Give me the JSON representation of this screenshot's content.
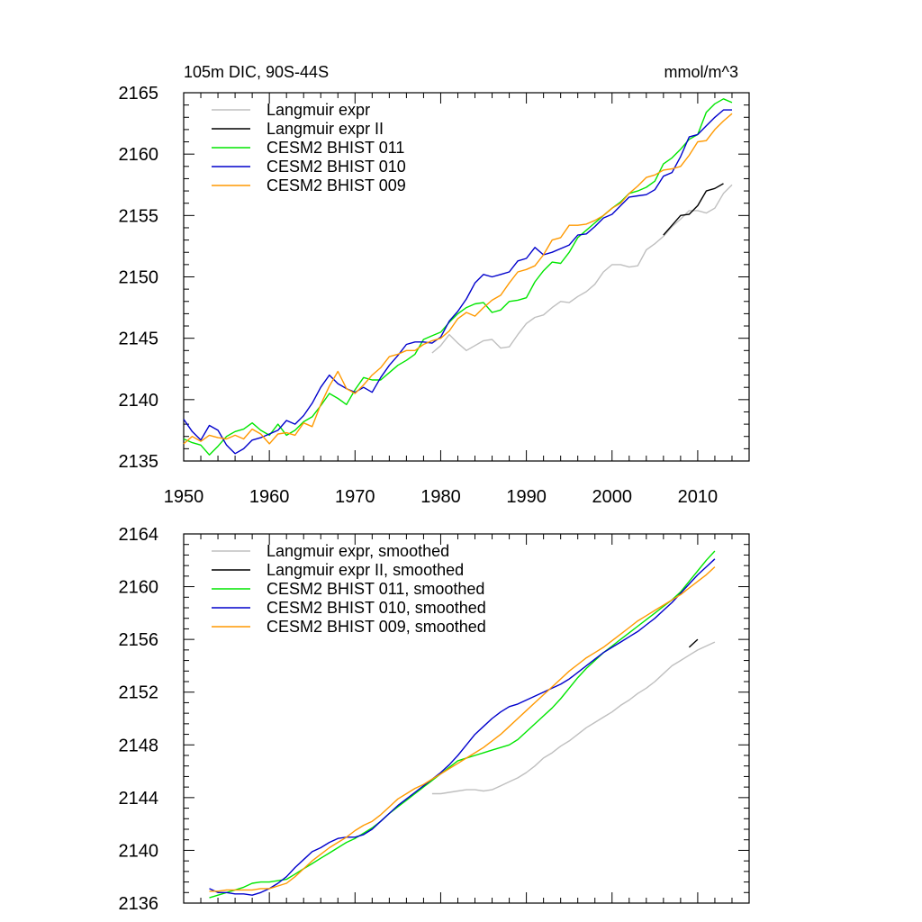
{
  "chart_data": [
    {
      "type": "line",
      "title": "105m DIC, 90S-44S",
      "units": "mmol/m^3",
      "xlim": [
        1950,
        2016
      ],
      "ylim": [
        2135,
        2165
      ],
      "xticks": [
        1950,
        1960,
        1970,
        1980,
        1990,
        2000,
        2010
      ],
      "yticks": [
        2135,
        2140,
        2145,
        2150,
        2155,
        2160,
        2165
      ],
      "legend_position": "top-left",
      "series": [
        {
          "name": "Langmuir expr",
          "color": "#bfbfbf",
          "x": [
            1979,
            1980,
            1981,
            1982,
            1983,
            1984,
            1985,
            1986,
            1987,
            1988,
            1989,
            1990,
            1991,
            1992,
            1993,
            1994,
            1995,
            1996,
            1997,
            1998,
            1999,
            2000,
            2001,
            2002,
            2003,
            2004,
            2005,
            2006,
            2007,
            2008,
            2009,
            2010,
            2011,
            2012,
            2013,
            2014
          ],
          "y": [
            2143.8,
            2144.4,
            2145.3,
            2144.6,
            2144.0,
            2144.4,
            2144.8,
            2144.9,
            2144.2,
            2144.3,
            2145.3,
            2146.2,
            2146.7,
            2146.9,
            2147.5,
            2148.0,
            2147.9,
            2148.4,
            2148.8,
            2149.4,
            2150.4,
            2151.0,
            2151.0,
            2150.8,
            2150.9,
            2152.2,
            2152.7,
            2153.3,
            2154.1,
            2154.7,
            2155.4,
            2155.4,
            2155.2,
            2155.6,
            2156.8,
            2157.5
          ]
        },
        {
          "name": "Langmuir expr II",
          "color": "#000000",
          "x": [
            2006,
            2007,
            2008,
            2009,
            2010,
            2011,
            2012,
            2013,
            2014
          ],
          "y": [
            2153.4,
            2154.2,
            2155.0,
            2155.1,
            2155.8,
            2157.0,
            2157.2,
            2157.6,
            null
          ]
        },
        {
          "name": "CESM2 BHIST 011",
          "color": "#00e600",
          "x": [
            1950,
            1951,
            1952,
            1953,
            1954,
            1955,
            1956,
            1957,
            1958,
            1959,
            1960,
            1961,
            1962,
            1963,
            1964,
            1965,
            1966,
            1967,
            1968,
            1969,
            1970,
            1971,
            1972,
            1973,
            1974,
            1975,
            1976,
            1977,
            1978,
            1979,
            1980,
            1981,
            1982,
            1983,
            1984,
            1985,
            1986,
            1987,
            1988,
            1989,
            1990,
            1991,
            1992,
            1993,
            1994,
            1995,
            1996,
            1997,
            1998,
            1999,
            2000,
            2001,
            2002,
            2003,
            2004,
            2005,
            2006,
            2007,
            2008,
            2009,
            2010,
            2011,
            2012,
            2013,
            2014
          ],
          "y": [
            2136.8,
            2136.5,
            2136.3,
            2135.5,
            2136.2,
            2137.0,
            2137.4,
            2137.6,
            2138.1,
            2137.5,
            2137.1,
            2138.0,
            2137.1,
            2137.5,
            2138.2,
            2138.6,
            2139.5,
            2140.5,
            2140.1,
            2139.6,
            2140.8,
            2141.8,
            2141.6,
            2141.6,
            2142.2,
            2142.8,
            2143.2,
            2143.7,
            2144.9,
            2145.2,
            2145.5,
            2146.3,
            2147.0,
            2147.5,
            2147.8,
            2147.9,
            2147.1,
            2147.3,
            2148.0,
            2148.1,
            2148.3,
            2149.6,
            2150.5,
            2151.2,
            2151.1,
            2152.0,
            2153.2,
            2153.8,
            2154.4,
            2155.0,
            2155.6,
            2156.1,
            2156.8,
            2157.0,
            2157.3,
            2157.8,
            2159.2,
            2159.7,
            2160.4,
            2161.2,
            2161.6,
            2163.4,
            2164.1,
            2164.5,
            2164.2
          ]
        },
        {
          "name": "CESM2 BHIST 010",
          "color": "#0000cc",
          "x": [
            1950,
            1951,
            1952,
            1953,
            1954,
            1955,
            1956,
            1957,
            1958,
            1959,
            1960,
            1961,
            1962,
            1963,
            1964,
            1965,
            1966,
            1967,
            1968,
            1969,
            1970,
            1971,
            1972,
            1973,
            1974,
            1975,
            1976,
            1977,
            1978,
            1979,
            1980,
            1981,
            1982,
            1983,
            1984,
            1985,
            1986,
            1987,
            1988,
            1989,
            1990,
            1991,
            1992,
            1993,
            1994,
            1995,
            1996,
            1997,
            1998,
            1999,
            2000,
            2001,
            2002,
            2003,
            2004,
            2005,
            2006,
            2007,
            2008,
            2009,
            2010,
            2011,
            2012,
            2013,
            2014
          ],
          "y": [
            2138.4,
            2137.4,
            2136.7,
            2137.9,
            2137.5,
            2136.3,
            2135.6,
            2136.0,
            2136.7,
            2136.9,
            2137.2,
            2137.5,
            2138.3,
            2138.0,
            2138.7,
            2139.7,
            2141.0,
            2142.0,
            2141.3,
            2140.9,
            2140.6,
            2141.0,
            2140.6,
            2141.8,
            2142.8,
            2143.6,
            2144.5,
            2144.7,
            2144.7,
            2144.6,
            2145.1,
            2146.4,
            2147.2,
            2148.2,
            2149.5,
            2150.2,
            2150.0,
            2150.2,
            2150.4,
            2151.3,
            2151.5,
            2152.4,
            2151.8,
            2152.0,
            2152.3,
            2152.6,
            2153.4,
            2153.5,
            2154.1,
            2154.8,
            2155.1,
            2155.8,
            2156.5,
            2156.6,
            2156.7,
            2157.1,
            2158.2,
            2158.5,
            2159.8,
            2161.4,
            2161.6,
            2162.3,
            2163.0,
            2163.6,
            2163.6
          ]
        },
        {
          "name": "CESM2 BHIST 009",
          "color": "#ff9900",
          "x": [
            1950,
            1951,
            1952,
            1953,
            1954,
            1955,
            1956,
            1957,
            1958,
            1959,
            1960,
            1961,
            1962,
            1963,
            1964,
            1965,
            1966,
            1967,
            1968,
            1969,
            1970,
            1971,
            1972,
            1973,
            1974,
            1975,
            1976,
            1977,
            1978,
            1979,
            1980,
            1981,
            1982,
            1983,
            1984,
            1985,
            1986,
            1987,
            1988,
            1989,
            1990,
            1991,
            1992,
            1993,
            1994,
            1995,
            1996,
            1997,
            1998,
            1999,
            2000,
            2001,
            2002,
            2003,
            2004,
            2005,
            2006,
            2007,
            2008,
            2009,
            2010,
            2011,
            2012,
            2013,
            2014
          ],
          "y": [
            2136.4,
            2137.0,
            2136.6,
            2137.1,
            2136.9,
            2136.8,
            2137.1,
            2136.8,
            2137.6,
            2137.2,
            2136.4,
            2137.2,
            2137.3,
            2137.1,
            2138.1,
            2137.8,
            2139.6,
            2141.1,
            2142.3,
            2140.9,
            2140.5,
            2141.2,
            2142.0,
            2142.6,
            2143.5,
            2143.7,
            2144.0,
            2144.0,
            2144.5,
            2144.8,
            2145.0,
            2145.6,
            2146.6,
            2147.1,
            2146.8,
            2147.5,
            2148.1,
            2148.5,
            2149.5,
            2150.4,
            2150.6,
            2150.9,
            2151.8,
            2153.0,
            2153.2,
            2154.2,
            2154.2,
            2154.3,
            2154.6,
            2155.0,
            2155.6,
            2156.0,
            2156.8,
            2157.4,
            2158.1,
            2158.3,
            2158.7,
            2158.8,
            2159.0,
            2159.9,
            2161.0,
            2161.1,
            2162.0,
            2162.7,
            2163.3
          ]
        }
      ]
    },
    {
      "type": "line",
      "xlim": [
        1950,
        2016
      ],
      "ylim": [
        2136,
        2164
      ],
      "xticks": [
        1950,
        1960,
        1970,
        1980,
        1990,
        2000,
        2010
      ],
      "yticks": [
        2136,
        2140,
        2144,
        2148,
        2152,
        2156,
        2160,
        2164
      ],
      "legend_position": "top-left",
      "series": [
        {
          "name": "Langmuir expr, smoothed",
          "color": "#bfbfbf",
          "x": [
            1979,
            1980,
            1981,
            1982,
            1983,
            1984,
            1985,
            1986,
            1987,
            1988,
            1989,
            1990,
            1991,
            1992,
            1993,
            1994,
            1995,
            1996,
            1997,
            1998,
            1999,
            2000,
            2001,
            2002,
            2003,
            2004,
            2005,
            2006,
            2007,
            2008,
            2009,
            2010,
            2011,
            2012
          ],
          "y": [
            2144.3,
            2144.3,
            2144.4,
            2144.5,
            2144.6,
            2144.6,
            2144.5,
            2144.6,
            2144.9,
            2145.2,
            2145.5,
            2145.9,
            2146.4,
            2147.0,
            2147.4,
            2147.9,
            2148.3,
            2148.8,
            2149.3,
            2149.7,
            2150.1,
            2150.5,
            2151.0,
            2151.4,
            2151.9,
            2152.3,
            2152.8,
            2153.4,
            2154.0,
            2154.4,
            2154.8,
            2155.2,
            2155.5,
            2155.8
          ]
        },
        {
          "name": "Langmuir expr II, smoothed",
          "color": "#000000",
          "x": [
            2009,
            2010
          ],
          "y": [
            2155.4,
            2156.0
          ]
        },
        {
          "name": "CESM2 BHIST 011, smoothed",
          "color": "#00e600",
          "x": [
            1953,
            1954,
            1955,
            1956,
            1957,
            1958,
            1959,
            1960,
            1961,
            1962,
            1963,
            1964,
            1965,
            1966,
            1967,
            1968,
            1969,
            1970,
            1971,
            1972,
            1973,
            1974,
            1975,
            1976,
            1977,
            1978,
            1979,
            1980,
            1981,
            1982,
            1983,
            1984,
            1985,
            1986,
            1987,
            1988,
            1989,
            1990,
            1991,
            1992,
            1993,
            1994,
            1995,
            1996,
            1997,
            1998,
            1999,
            2000,
            2001,
            2002,
            2003,
            2004,
            2005,
            2006,
            2007,
            2008,
            2009,
            2010,
            2011,
            2012
          ],
          "y": [
            2136.4,
            2136.6,
            2136.8,
            2137.0,
            2137.2,
            2137.5,
            2137.6,
            2137.6,
            2137.7,
            2137.8,
            2138.2,
            2138.6,
            2139.0,
            2139.4,
            2139.8,
            2140.2,
            2140.6,
            2140.9,
            2141.3,
            2141.7,
            2142.2,
            2142.8,
            2143.3,
            2143.8,
            2144.3,
            2144.8,
            2145.3,
            2145.8,
            2146.3,
            2146.8,
            2147.0,
            2147.2,
            2147.4,
            2147.6,
            2147.8,
            2148.0,
            2148.4,
            2149.0,
            2149.6,
            2150.2,
            2150.8,
            2151.5,
            2152.3,
            2153.1,
            2153.8,
            2154.4,
            2155.0,
            2155.5,
            2156.0,
            2156.5,
            2157.0,
            2157.5,
            2158.0,
            2158.5,
            2159.0,
            2159.6,
            2160.4,
            2161.2,
            2162.0,
            2162.7
          ]
        },
        {
          "name": "CESM2 BHIST 010, smoothed",
          "color": "#0000cc",
          "x": [
            1953,
            1954,
            1955,
            1956,
            1957,
            1958,
            1959,
            1960,
            1961,
            1962,
            1963,
            1964,
            1965,
            1966,
            1967,
            1968,
            1969,
            1970,
            1971,
            1972,
            1973,
            1974,
            1975,
            1976,
            1977,
            1978,
            1979,
            1980,
            1981,
            1982,
            1983,
            1984,
            1985,
            1986,
            1987,
            1988,
            1989,
            1990,
            1991,
            1992,
            1993,
            1994,
            1995,
            1996,
            1997,
            1998,
            1999,
            2000,
            2001,
            2002,
            2003,
            2004,
            2005,
            2006,
            2007,
            2008,
            2009,
            2010,
            2011,
            2012
          ],
          "y": [
            2137.1,
            2136.8,
            2136.8,
            2136.7,
            2136.7,
            2136.6,
            2136.8,
            2137.1,
            2137.5,
            2138.0,
            2138.7,
            2139.3,
            2139.9,
            2140.2,
            2140.6,
            2140.9,
            2141.0,
            2141.0,
            2141.2,
            2141.6,
            2142.2,
            2142.8,
            2143.4,
            2143.9,
            2144.4,
            2144.9,
            2145.4,
            2145.9,
            2146.5,
            2147.2,
            2148.0,
            2148.8,
            2149.4,
            2150.0,
            2150.5,
            2150.9,
            2151.1,
            2151.4,
            2151.7,
            2152.0,
            2152.3,
            2152.6,
            2153.0,
            2153.5,
            2154.0,
            2154.5,
            2155.0,
            2155.4,
            2155.8,
            2156.2,
            2156.6,
            2157.1,
            2157.6,
            2158.2,
            2158.8,
            2159.5,
            2160.2,
            2160.9,
            2161.5,
            2162.1
          ]
        },
        {
          "name": "CESM2 BHIST 009, smoothed",
          "color": "#ff9900",
          "x": [
            1953,
            1954,
            1955,
            1956,
            1957,
            1958,
            1959,
            1960,
            1961,
            1962,
            1963,
            1964,
            1965,
            1966,
            1967,
            1968,
            1969,
            1970,
            1971,
            1972,
            1973,
            1974,
            1975,
            1976,
            1977,
            1978,
            1979,
            1980,
            1981,
            1982,
            1983,
            1984,
            1985,
            1986,
            1987,
            1988,
            1989,
            1990,
            1991,
            1992,
            1993,
            1994,
            1995,
            1996,
            1997,
            1998,
            1999,
            2000,
            2001,
            2002,
            2003,
            2004,
            2005,
            2006,
            2007,
            2008,
            2009,
            2010,
            2011,
            2012
          ],
          "y": [
            2136.9,
            2136.9,
            2137.0,
            2137.0,
            2137.0,
            2137.0,
            2137.1,
            2137.1,
            2137.3,
            2137.5,
            2138.0,
            2138.6,
            2139.2,
            2139.7,
            2140.2,
            2140.6,
            2141.0,
            2141.5,
            2141.9,
            2142.2,
            2142.7,
            2143.3,
            2143.9,
            2144.3,
            2144.7,
            2145.0,
            2145.4,
            2145.8,
            2146.2,
            2146.6,
            2147.0,
            2147.4,
            2147.8,
            2148.3,
            2148.8,
            2149.4,
            2150.0,
            2150.6,
            2151.2,
            2151.8,
            2152.4,
            2153.0,
            2153.6,
            2154.1,
            2154.6,
            2155.0,
            2155.4,
            2155.9,
            2156.4,
            2156.9,
            2157.4,
            2157.8,
            2158.2,
            2158.6,
            2159.0,
            2159.4,
            2159.9,
            2160.4,
            2160.9,
            2161.5
          ]
        }
      ]
    }
  ]
}
